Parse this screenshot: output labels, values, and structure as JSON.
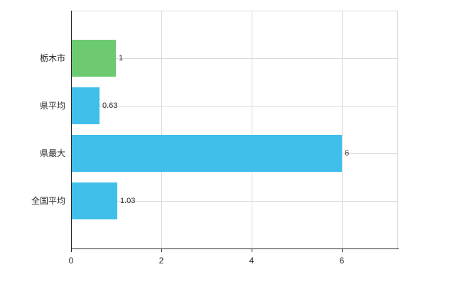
{
  "chart_data": {
    "type": "bar",
    "orientation": "horizontal",
    "title": "",
    "xlabel": "",
    "ylabel": "",
    "categories": [
      "栃木市",
      "県平均",
      "県最大",
      "全国平均"
    ],
    "values": [
      1,
      0.63,
      6,
      1.03
    ],
    "value_labels": [
      "1",
      "0.63",
      "6",
      "1.03"
    ],
    "bar_colors": [
      "#6dca70",
      "#3fbfea",
      "#3fbfea",
      "#3fbfea"
    ],
    "x_ticks": [
      0,
      2,
      4,
      6
    ],
    "xlim": [
      0,
      7.25
    ],
    "grid": true,
    "legend": false,
    "colors": {
      "grid": "#d9d9d9",
      "axis": "#262626",
      "text": "#262626",
      "background": "#ffffff"
    }
  }
}
